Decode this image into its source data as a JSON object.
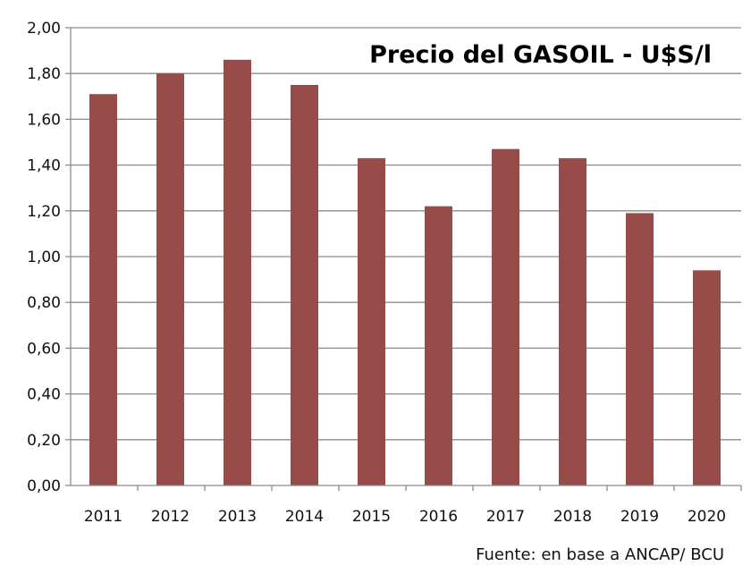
{
  "chart_data": {
    "type": "bar",
    "title": "Precio del GASOIL - U$S/l",
    "source": "Fuente: en base a ANCAP/ BCU",
    "categories": [
      "2011",
      "2012",
      "2013",
      "2014",
      "2015",
      "2016",
      "2017",
      "2018",
      "2019",
      "2020"
    ],
    "values": [
      1.71,
      1.8,
      1.86,
      1.75,
      1.43,
      1.22,
      1.47,
      1.43,
      1.19,
      0.94
    ],
    "yticks": [
      "0,00",
      "0,20",
      "0,40",
      "0,60",
      "0,80",
      "1,00",
      "1,20",
      "1,40",
      "1,60",
      "1,80",
      "2,00"
    ],
    "xlabel": "",
    "ylabel": "",
    "ylim": [
      0,
      2
    ],
    "grid": true,
    "bar_color": "#974C4A"
  }
}
